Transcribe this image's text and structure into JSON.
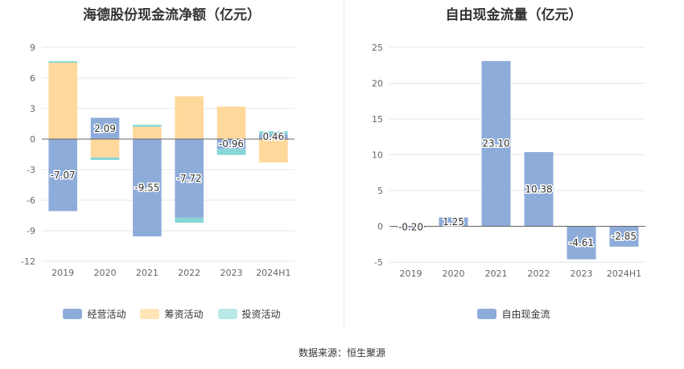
{
  "footer": {
    "source": "数据来源：恒生聚源"
  },
  "colors": {
    "operating": "#8eacd9",
    "financing": "#ffd89b",
    "investing": "#88d6d6",
    "free_cash": "#8eacd9"
  },
  "chart_data": [
    {
      "type": "bar",
      "stacked": true,
      "title": "海德股份现金流净额（亿元）",
      "categories": [
        "2019",
        "2020",
        "2021",
        "2022",
        "2023",
        "2024H1"
      ],
      "ylim": [
        -12,
        9
      ],
      "yticks": [
        9,
        6,
        3,
        0,
        -3,
        -6,
        -9,
        -12
      ],
      "grid": true,
      "legend_position": "bottom",
      "series": [
        {
          "name": "经营活动",
          "values": [
            -7.07,
            2.09,
            -9.55,
            -7.72,
            -0.96,
            0.46
          ],
          "labeled": true
        },
        {
          "name": "筹资活动",
          "values": [
            7.5,
            -1.8,
            1.2,
            4.2,
            3.2,
            -2.3
          ],
          "labeled": false
        },
        {
          "name": "投资活动",
          "values": [
            0.15,
            -0.25,
            0.2,
            -0.5,
            -0.6,
            0.3
          ],
          "labeled": false
        }
      ]
    },
    {
      "type": "bar",
      "title": "自由现金流量（亿元）",
      "categories": [
        "2019",
        "2020",
        "2021",
        "2022",
        "2023",
        "2024H1"
      ],
      "ylim": [
        -5,
        25
      ],
      "yticks": [
        25,
        20,
        15,
        10,
        5,
        0,
        -5
      ],
      "grid": true,
      "legend_position": "bottom",
      "series": [
        {
          "name": "自由现金流",
          "values": [
            -0.2,
            1.25,
            23.1,
            10.38,
            -4.61,
            -2.85
          ],
          "labeled": true
        }
      ]
    }
  ]
}
